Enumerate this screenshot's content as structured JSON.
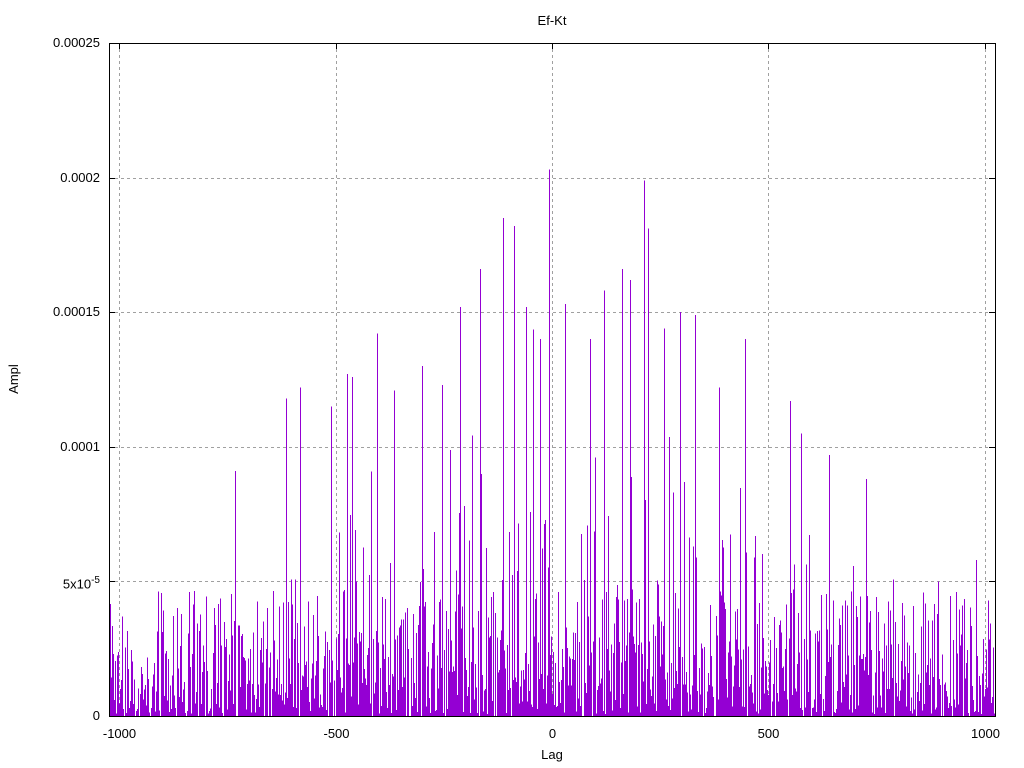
{
  "window": {
    "background": "#ffffff"
  },
  "chart_data": {
    "type": "impulses",
    "title": "Ef-Kt",
    "xlabel": "Lag",
    "ylabel": "Ampl",
    "xlim": [
      -1024,
      1024
    ],
    "ylim": [
      0,
      0.00025
    ],
    "grid": true,
    "grid_style": "dashed",
    "grid_color": "#a0a0a0",
    "border_color": "#000000",
    "series_color": "#9400d3",
    "legend": "none",
    "x_ticks": [
      {
        "value": -1000,
        "label": "-1000"
      },
      {
        "value": -500,
        "label": "-500"
      },
      {
        "value": 0,
        "label": "0"
      },
      {
        "value": 500,
        "label": "500"
      },
      {
        "value": 1000,
        "label": "1000"
      }
    ],
    "y_ticks": [
      {
        "value": 0,
        "base": "0",
        "exp": ""
      },
      {
        "value": 5e-05,
        "base": "5x10",
        "exp": "-5"
      },
      {
        "value": 0.0001,
        "base": "0.0001",
        "exp": ""
      },
      {
        "value": 0.00015,
        "base": "0.00015",
        "exp": ""
      },
      {
        "value": 0.0002,
        "base": "0.0002",
        "exp": ""
      },
      {
        "value": 0.00025,
        "base": "0.00025",
        "exp": ""
      }
    ],
    "notable_peaks": [
      {
        "lag": -733,
        "ampl": 9.1e-05
      },
      {
        "lag": -616,
        "ampl": 0.000118
      },
      {
        "lag": -583,
        "ampl": 0.000122
      },
      {
        "lag": -510,
        "ampl": 0.000115
      },
      {
        "lag": -475,
        "ampl": 0.000127
      },
      {
        "lag": -462,
        "ampl": 0.000126
      },
      {
        "lag": -404,
        "ampl": 0.000142
      },
      {
        "lag": -365,
        "ampl": 0.000121
      },
      {
        "lag": -300,
        "ampl": 0.00013
      },
      {
        "lag": -255,
        "ampl": 0.000123
      },
      {
        "lag": -213,
        "ampl": 0.000152
      },
      {
        "lag": -166,
        "ampl": 0.000166
      },
      {
        "lag": -113,
        "ampl": 0.000185
      },
      {
        "lag": -88,
        "ampl": 0.000182
      },
      {
        "lag": -60,
        "ampl": 0.000152
      },
      {
        "lag": -28,
        "ampl": 0.00014
      },
      {
        "lag": -6,
        "ampl": 0.000203
      },
      {
        "lag": 30,
        "ampl": 0.000153
      },
      {
        "lag": 87,
        "ampl": 0.00014
      },
      {
        "lag": 120,
        "ampl": 0.000158
      },
      {
        "lag": 162,
        "ampl": 0.000166
      },
      {
        "lag": 180,
        "ampl": 0.000162
      },
      {
        "lag": 213,
        "ampl": 0.000199
      },
      {
        "lag": 222,
        "ampl": 0.000181
      },
      {
        "lag": 260,
        "ampl": 0.000144
      },
      {
        "lag": 296,
        "ampl": 0.00015
      },
      {
        "lag": 330,
        "ampl": 0.000149
      },
      {
        "lag": 385,
        "ampl": 0.000122
      },
      {
        "lag": 446,
        "ampl": 0.00014
      },
      {
        "lag": 550,
        "ampl": 0.000117
      },
      {
        "lag": 575,
        "ampl": 0.000105
      },
      {
        "lag": 640,
        "ampl": 9.7e-05
      },
      {
        "lag": 725,
        "ampl": 8.8e-05
      },
      {
        "lag": 980,
        "ampl": 5.8e-05
      }
    ],
    "signal_model": {
      "description": "dense noisy impulse train, amplitude envelope rising toward lag 0",
      "lag_step": 2,
      "noise_floor": 4.6e-05,
      "noise_seed": 20481,
      "envelope": [
        [
          -1024,
          5e-05
        ],
        [
          -900,
          5.4e-05
        ],
        [
          -780,
          6.8e-05
        ],
        [
          -700,
          8e-05
        ],
        [
          -620,
          9.5e-05
        ],
        [
          -520,
          0.000105
        ],
        [
          -430,
          0.00012
        ],
        [
          -330,
          0.000118
        ],
        [
          -240,
          0.00013
        ],
        [
          -150,
          0.00015
        ],
        [
          -80,
          0.00016
        ],
        [
          0,
          0.00017
        ],
        [
          80,
          0.000155
        ],
        [
          160,
          0.000165
        ],
        [
          230,
          0.00017
        ],
        [
          310,
          0.000145
        ],
        [
          400,
          0.000125
        ],
        [
          470,
          0.00013
        ],
        [
          560,
          0.00011
        ],
        [
          650,
          9.5e-05
        ],
        [
          740,
          8.5e-05
        ],
        [
          850,
          6.2e-05
        ],
        [
          940,
          5.6e-05
        ],
        [
          1024,
          5.8e-05
        ]
      ]
    }
  }
}
